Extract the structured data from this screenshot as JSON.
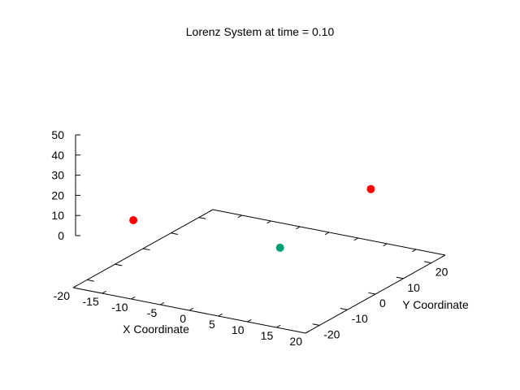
{
  "chart_data": {
    "type": "scatter",
    "title": "Lorenz System at time = 0.10",
    "xlabel": "X Coordinate",
    "ylabel": "Y Coordinate",
    "zlabel": "",
    "xlim": [
      -20,
      20
    ],
    "ylim": [
      -25,
      25
    ],
    "zlim": [
      0,
      50
    ],
    "xticks": [
      "-20",
      "-15",
      "-10",
      "-5",
      "0",
      "5",
      "10",
      "15",
      "20"
    ],
    "yticks": [
      "-20",
      "-10",
      "0",
      "10",
      "20"
    ],
    "zticks": [
      "0",
      "10",
      "20",
      "30",
      "40",
      "50"
    ],
    "grid": false,
    "points": [
      {
        "x": -13,
        "y": -18,
        "z": 32,
        "color": "#ff0000"
      },
      {
        "x": 12,
        "y": 15,
        "z": 36,
        "color": "#ff0000"
      },
      {
        "x": 6,
        "y": -5,
        "z": 19,
        "color": "#009e73"
      }
    ]
  }
}
